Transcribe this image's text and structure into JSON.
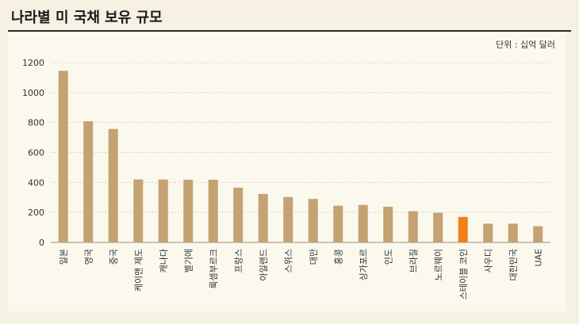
{
  "chart_data": {
    "type": "bar",
    "title": "나라별 미 국채 보유 규모",
    "unit_label": "단위 : 십억 달러",
    "xlabel": "",
    "ylabel": "",
    "ylim": [
      0,
      1200
    ],
    "yticks": [
      0,
      200,
      400,
      600,
      800,
      1000,
      1200
    ],
    "grid": true,
    "categories": [
      "일본",
      "영국",
      "중국",
      "케이맨 제도",
      "캐나다",
      "벨기에",
      "룩셈부르크",
      "프랑스",
      "아일랜드",
      "스위스",
      "대만",
      "홍콩",
      "싱가포르",
      "인도",
      "브라질",
      "노르웨이",
      "스테이블 코인",
      "사우디",
      "대한민국",
      "UAE"
    ],
    "values": [
      1145,
      808,
      757,
      420,
      420,
      418,
      418,
      365,
      323,
      303,
      290,
      245,
      250,
      238,
      208,
      198,
      170,
      125,
      125,
      108
    ],
    "colors": {
      "bar": "#c4a271",
      "highlight": "#f08018",
      "highlight_category": "스테이블 코인"
    }
  }
}
